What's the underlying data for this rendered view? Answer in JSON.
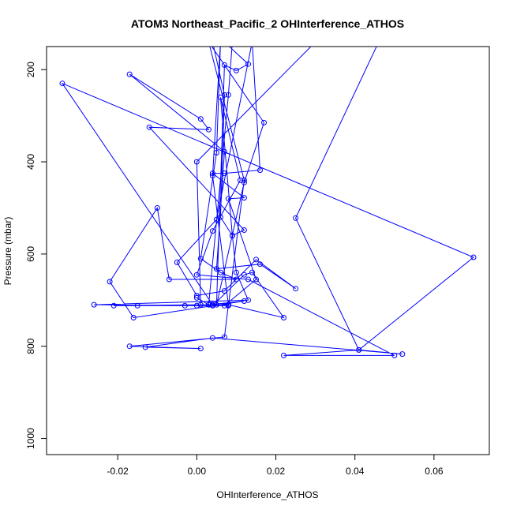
{
  "chart_data": {
    "type": "line",
    "title": "ATOM3 Northeast_Pacific_2 OHInterference_ATHOS",
    "xlabel": "OHInterference_ATHOS",
    "ylabel": "Pressure (mbar)",
    "xlim": [
      -0.038,
      0.074
    ],
    "ylim": [
      1035,
      150
    ],
    "y_inverted": true,
    "x_ticks": [
      -0.02,
      0.0,
      0.02,
      0.04,
      0.06
    ],
    "x_tick_labels": [
      "-0.02",
      "0.00",
      "0.02",
      "0.04",
      "0.06"
    ],
    "y_ticks": [
      200,
      400,
      600,
      800,
      1000
    ],
    "y_tick_labels": [
      "200",
      "400",
      "600",
      "800",
      "1000"
    ],
    "grid": false,
    "series": [
      {
        "color": "#0000ff",
        "marker": "open-circle",
        "points": [
          [
            0.0,
            695
          ],
          [
            0.003,
            710
          ],
          [
            0.012,
            702
          ],
          [
            -0.016,
            738
          ],
          [
            -0.022,
            660
          ],
          [
            -0.01,
            500
          ],
          [
            -0.007,
            655
          ],
          [
            0.01,
            655
          ],
          [
            0.006,
            640
          ],
          [
            0.001,
            610
          ],
          [
            0.005,
            380
          ],
          [
            0.006,
            140
          ],
          [
            0.004,
            430
          ],
          [
            0.008,
            710
          ],
          [
            0.004,
            710
          ],
          [
            -0.034,
            230
          ],
          [
            0.07,
            607
          ],
          [
            0.041,
            808
          ],
          [
            0.022,
            820
          ],
          [
            0.05,
            820
          ],
          [
            0.013,
            655
          ],
          [
            0.0,
            645
          ],
          [
            0.004,
            550
          ],
          [
            0.011,
            440
          ],
          [
            0.006,
            260
          ],
          [
            0.009,
            560
          ],
          [
            0.01,
            640
          ],
          [
            0.013,
            700
          ],
          [
            -0.026,
            710
          ],
          [
            -0.003,
            712
          ],
          [
            0.007,
            712
          ],
          [
            0.015,
            655
          ],
          [
            0.008,
            480
          ],
          [
            0.012,
            478
          ],
          [
            0.004,
            425
          ],
          [
            0.007,
            425
          ],
          [
            0.016,
            418
          ],
          [
            0.014,
            140
          ],
          [
            0.005,
            525
          ],
          [
            -0.005,
            618
          ],
          [
            0.0,
            690
          ],
          [
            0.007,
            680
          ],
          [
            0.015,
            612
          ],
          [
            0.025,
            675
          ],
          [
            0.016,
            622
          ],
          [
            0.005,
            632
          ],
          [
            0.007,
            378
          ],
          [
            -0.017,
            210
          ],
          [
            0.001,
            307
          ],
          [
            0.003,
            330
          ],
          [
            -0.012,
            325
          ],
          [
            0.012,
            548
          ],
          [
            0.009,
            560
          ],
          [
            0.006,
            520
          ],
          [
            0.007,
            255
          ],
          [
            0.004,
            140
          ],
          [
            0.009,
            140
          ],
          [
            0.008,
            255
          ],
          [
            0.003,
            710
          ],
          [
            -0.015,
            712
          ],
          [
            0.0,
            712
          ],
          [
            0.004,
            712
          ],
          [
            0.012,
            645
          ],
          [
            0.014,
            640
          ],
          [
            0.022,
            738
          ],
          [
            0.008,
            710
          ],
          [
            0.007,
            780
          ],
          [
            -0.017,
            800
          ],
          [
            0.001,
            805
          ],
          [
            -0.013,
            802
          ],
          [
            0.004,
            782
          ],
          [
            0.052,
            817
          ],
          [
            0.041,
            808
          ],
          [
            0.025,
            522
          ],
          [
            0.046,
            140
          ],
          [
            0.03,
            140
          ],
          [
            0.0,
            400
          ],
          [
            0.001,
            710
          ],
          [
            -0.021,
            712
          ],
          [
            0.008,
            712
          ],
          [
            0.012,
            440
          ],
          [
            0.003,
            140
          ],
          [
            0.017,
            315
          ],
          [
            0.012,
            445
          ],
          [
            0.005,
            710
          ],
          [
            0.007,
            190
          ],
          [
            0.01,
            202
          ],
          [
            0.013,
            188
          ],
          [
            0.007,
            140
          ]
        ]
      }
    ]
  }
}
